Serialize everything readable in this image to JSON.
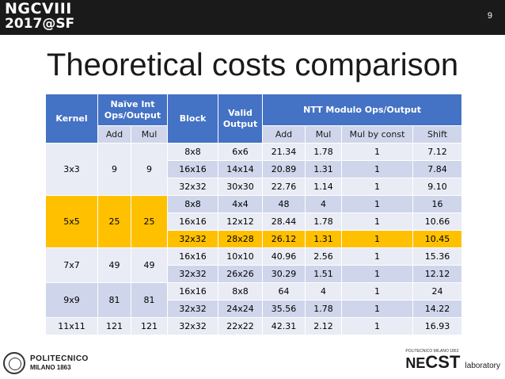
{
  "header": {
    "logo_line1": "NGCVIII",
    "logo_line2": "2017@SF",
    "page_number": "9"
  },
  "title": "Theoretical costs comparison",
  "table": {
    "headers": {
      "kernel": "Kernel",
      "naive": "Naïve Int Ops/Output",
      "block": "Block",
      "valid": "Valid Output",
      "ntt": "NTT Modulo Ops/Output",
      "add": "Add",
      "mul": "Mul",
      "ntt_add": "Add",
      "ntt_mul": "Mul",
      "ntt_mulconst": "Mul by const",
      "ntt_shift": "Shift"
    },
    "groups": [
      {
        "kernel": "3x3",
        "naive_add": "9",
        "naive_mul": "9",
        "rows": [
          {
            "block": "8x8",
            "valid": "6x6",
            "add": "21.34",
            "mul": "1.78",
            "mulconst": "1",
            "shift": "7.12"
          },
          {
            "block": "16x16",
            "valid": "14x14",
            "add": "20.89",
            "mul": "1.31",
            "mulconst": "1",
            "shift": "7.84"
          },
          {
            "block": "32x32",
            "valid": "30x30",
            "add": "22.76",
            "mul": "1.14",
            "mulconst": "1",
            "shift": "9.10"
          }
        ]
      },
      {
        "kernel": "5x5",
        "naive_add": "25",
        "naive_mul": "25",
        "rows": [
          {
            "block": "8x8",
            "valid": "4x4",
            "add": "48",
            "mul": "4",
            "mulconst": "1",
            "shift": "16"
          },
          {
            "block": "16x16",
            "valid": "12x12",
            "add": "28.44",
            "mul": "1.78",
            "mulconst": "1",
            "shift": "10.66"
          },
          {
            "block": "32x32",
            "valid": "28x28",
            "add": "26.12",
            "mul": "1.31",
            "mulconst": "1",
            "shift": "10.45"
          }
        ]
      },
      {
        "kernel": "7x7",
        "naive_add": "49",
        "naive_mul": "49",
        "rows": [
          {
            "block": "16x16",
            "valid": "10x10",
            "add": "40.96",
            "mul": "2.56",
            "mulconst": "1",
            "shift": "15.36"
          },
          {
            "block": "32x32",
            "valid": "26x26",
            "add": "30.29",
            "mul": "1.51",
            "mulconst": "1",
            "shift": "12.12"
          }
        ]
      },
      {
        "kernel": "9x9",
        "naive_add": "81",
        "naive_mul": "81",
        "rows": [
          {
            "block": "16x16",
            "valid": "8x8",
            "add": "64",
            "mul": "4",
            "mulconst": "1",
            "shift": "24"
          },
          {
            "block": "32x32",
            "valid": "24x24",
            "add": "35.56",
            "mul": "1.78",
            "mulconst": "1",
            "shift": "14.22"
          }
        ]
      },
      {
        "kernel": "11x11",
        "naive_add": "121",
        "naive_mul": "121",
        "rows": [
          {
            "block": "32x32",
            "valid": "22x22",
            "add": "42.31",
            "mul": "2.12",
            "mulconst": "1",
            "shift": "16.93"
          }
        ]
      }
    ]
  },
  "footer": {
    "left_name": "POLITECNICO",
    "left_sub": "MILANO 1863",
    "right_top": "POLITECNICO MILANO 1863",
    "right_ne": "NE",
    "right_cst": "CST",
    "right_lab": "laboratory"
  },
  "colors": {
    "header_blue": "#4472c4",
    "row_light": "#e9ebf5",
    "row_dark": "#cfd5ea",
    "highlight": "#ffc000"
  }
}
